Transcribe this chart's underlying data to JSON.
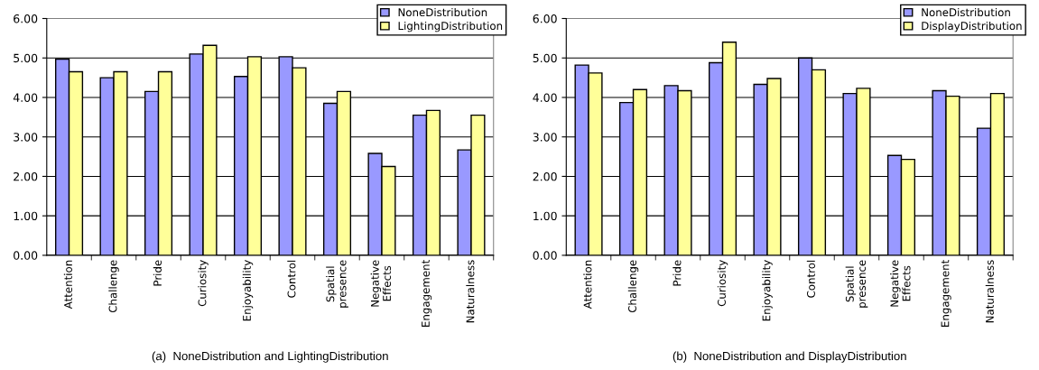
{
  "chart_data": [
    {
      "type": "bar",
      "categories": [
        "Attention",
        "Challenge",
        "Pride",
        "Curiosity",
        "Enjoyability",
        "Control",
        "Spatial\npresence",
        "Negative\nEffects",
        "Engagement",
        "Naturalness"
      ],
      "series": [
        {
          "name": "NoneDistribution",
          "color": "#9999ff",
          "values": [
            4.97,
            4.5,
            4.15,
            5.1,
            4.53,
            5.03,
            3.85,
            2.58,
            3.55,
            2.67
          ]
        },
        {
          "name": "LightingDistribution",
          "color": "#ffff99",
          "values": [
            4.65,
            4.65,
            4.65,
            5.32,
            5.03,
            4.75,
            4.15,
            2.25,
            3.67,
            3.55
          ]
        }
      ],
      "ylim": [
        0,
        6
      ],
      "yticks": [
        {
          "value": 0,
          "label": "0.00"
        },
        {
          "value": 1,
          "label": "1.00"
        },
        {
          "value": 2,
          "label": "2.00"
        },
        {
          "value": 3,
          "label": "3.00"
        },
        {
          "value": 4,
          "label": "4.00"
        },
        {
          "value": 5,
          "label": "5.00"
        },
        {
          "value": 6,
          "label": "6.00"
        }
      ],
      "grid": "y",
      "legend": "top right",
      "annotations": [
        "(a)  NoneDistribution and LightingDistribution"
      ]
    },
    {
      "type": "bar",
      "categories": [
        "Attention",
        "Challenge",
        "Pride",
        "Curiosity",
        "Enjoyability",
        "Control",
        "Spatial\npresence",
        "Negative\nEffects",
        "Engagement",
        "Naturalness"
      ],
      "series": [
        {
          "name": "NoneDistribution",
          "color": "#9999ff",
          "values": [
            4.82,
            3.87,
            4.3,
            4.88,
            4.33,
            5.0,
            4.1,
            2.53,
            4.17,
            3.22
          ]
        },
        {
          "name": "DisplayDistribution",
          "color": "#ffff99",
          "values": [
            4.62,
            4.2,
            4.17,
            5.4,
            4.48,
            4.7,
            4.23,
            2.43,
            4.03,
            4.1
          ]
        }
      ],
      "ylim": [
        0,
        6
      ],
      "yticks": [
        {
          "value": 0,
          "label": "0.00"
        },
        {
          "value": 1,
          "label": "1.00"
        },
        {
          "value": 2,
          "label": "2.00"
        },
        {
          "value": 3,
          "label": "3.00"
        },
        {
          "value": 4,
          "label": "4.00"
        },
        {
          "value": 5,
          "label": "5.00"
        },
        {
          "value": 6,
          "label": "6.00"
        }
      ],
      "grid": "y",
      "legend": "top right",
      "annotations": [
        "(b)  NoneDistribution and DisplayDistribution"
      ]
    }
  ]
}
